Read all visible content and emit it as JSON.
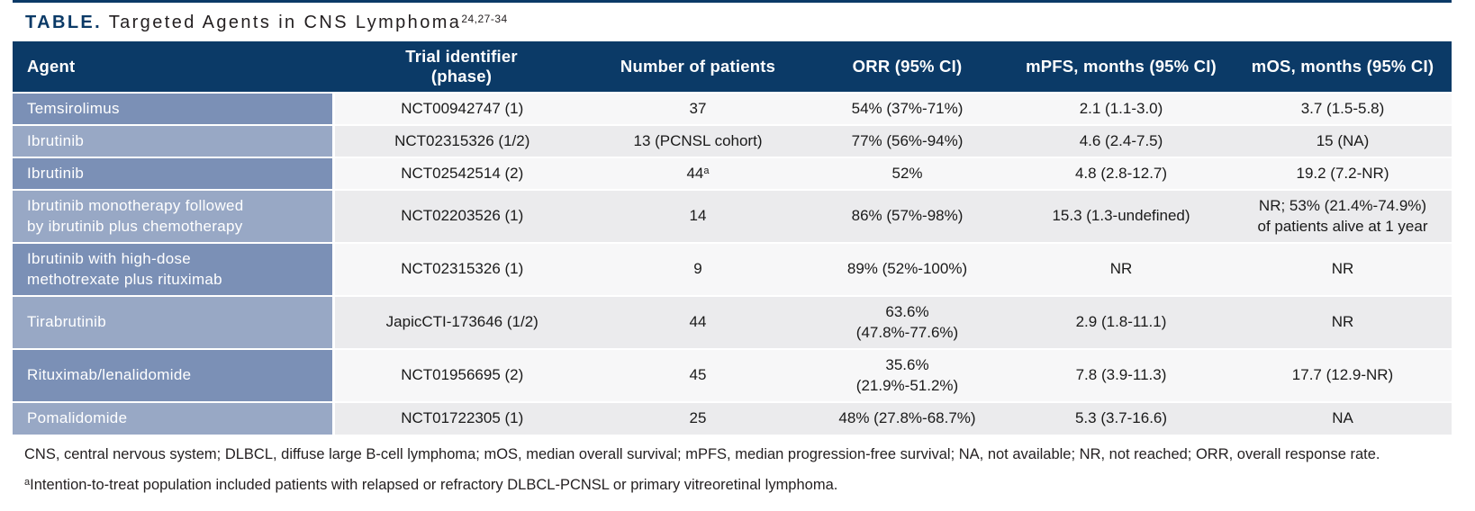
{
  "title": {
    "label": "TABLE.",
    "text": "Targeted Agents in CNS Lymphoma",
    "refs": "24,27-34"
  },
  "colors": {
    "navy": "#0b3a67",
    "agent_row_dark": "#7b90b6",
    "agent_row_light": "#98a8c5",
    "row_light": "#f7f7f8",
    "row_alt": "#ebebed",
    "text_dark": "#1a1a1a"
  },
  "table": {
    "headers": {
      "agent": "Agent",
      "trial": "Trial identifier\n(phase)",
      "patients": "Number of patients",
      "orr": "ORR (95% CI)",
      "mpfs": "mPFS, months (95% CI)",
      "mos": "mOS, months (95% CI)"
    },
    "rows": [
      {
        "agent": "Temsirolimus",
        "trial": "NCT00942747 (1)",
        "patients": "37",
        "patients_sup": "",
        "orr": "54% (37%-71%)",
        "mpfs": "2.1 (1.1-3.0)",
        "mos": "3.7 (1.5-5.8)"
      },
      {
        "agent": "Ibrutinib",
        "trial": "NCT02315326 (1/2)",
        "patients": "13 (PCNSL cohort)",
        "patients_sup": "",
        "orr": "77% (56%-94%)",
        "mpfs": "4.6 (2.4-7.5)",
        "mos": "15 (NA)"
      },
      {
        "agent": "Ibrutinib",
        "trial": "NCT02542514 (2)",
        "patients": "44",
        "patients_sup": "a",
        "orr": "52%",
        "mpfs": "4.8 (2.8-12.7)",
        "mos": "19.2 (7.2-NR)"
      },
      {
        "agent": "Ibrutinib monotherapy followed\nby ibrutinib plus chemotherapy",
        "trial": "NCT02203526 (1)",
        "patients": "14",
        "patients_sup": "",
        "orr": "86% (57%-98%)",
        "mpfs": "15.3 (1.3-undefined)",
        "mos": "NR; 53% (21.4%-74.9%)\nof patients alive at 1 year"
      },
      {
        "agent": "Ibrutinib with high-dose\nmethotrexate plus rituximab",
        "trial": "NCT02315326 (1)",
        "patients": "9",
        "patients_sup": "",
        "orr": "89% (52%-100%)",
        "mpfs": "NR",
        "mos": "NR"
      },
      {
        "agent": "Tirabrutinib",
        "trial": "JapicCTI-173646 (1/2)",
        "patients": "44",
        "patients_sup": "",
        "orr": "63.6%\n(47.8%-77.6%)",
        "mpfs": "2.9 (1.8-11.1)",
        "mos": "NR"
      },
      {
        "agent": "Rituximab/lenalidomide",
        "trial": "NCT01956695 (2)",
        "patients": "45",
        "patients_sup": "",
        "orr": "35.6%\n(21.9%-51.2%)",
        "mpfs": "7.8 (3.9-11.3)",
        "mos": "17.7 (12.9-NR)"
      },
      {
        "agent": "Pomalidomide",
        "trial": "NCT01722305 (1)",
        "patients": "25",
        "patients_sup": "",
        "orr": "48% (27.8%-68.7%)",
        "mpfs": "5.3 (3.7-16.6)",
        "mos": "NA"
      }
    ]
  },
  "footnotes": {
    "abbreviations": "CNS, central nervous system; DLBCL, diffuse large B-cell lymphoma; mOS, median overall survival; mPFS, median progression-free survival; NA, not available; NR, not reached; ORR, overall response rate.",
    "marker": "a",
    "note": "Intention-to-treat population included patients with relapsed or refractory DLBCL-PCNSL or primary vitreoretinal lymphoma."
  }
}
